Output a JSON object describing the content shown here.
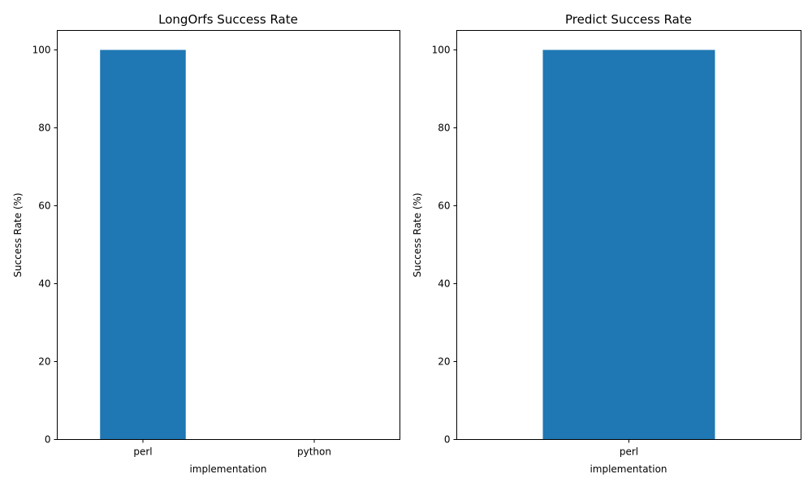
{
  "chart_data": [
    {
      "type": "bar",
      "title": "LongOrfs Success Rate",
      "xlabel": "implementation",
      "ylabel": "Success Rate (%)",
      "categories": [
        "perl",
        "python"
      ],
      "values": [
        100,
        0
      ],
      "ylim": [
        0,
        105
      ],
      "yticks": [
        0,
        20,
        40,
        60,
        80,
        100
      ],
      "bar_color": "#1f77b4",
      "grid": false,
      "legend": "none"
    },
    {
      "type": "bar",
      "title": "Predict Success Rate",
      "xlabel": "implementation",
      "ylabel": "Success Rate (%)",
      "categories": [
        "perl"
      ],
      "values": [
        100
      ],
      "ylim": [
        0,
        105
      ],
      "yticks": [
        0,
        20,
        40,
        60,
        80,
        100
      ],
      "bar_color": "#1f77b4",
      "grid": false,
      "legend": "none"
    }
  ]
}
